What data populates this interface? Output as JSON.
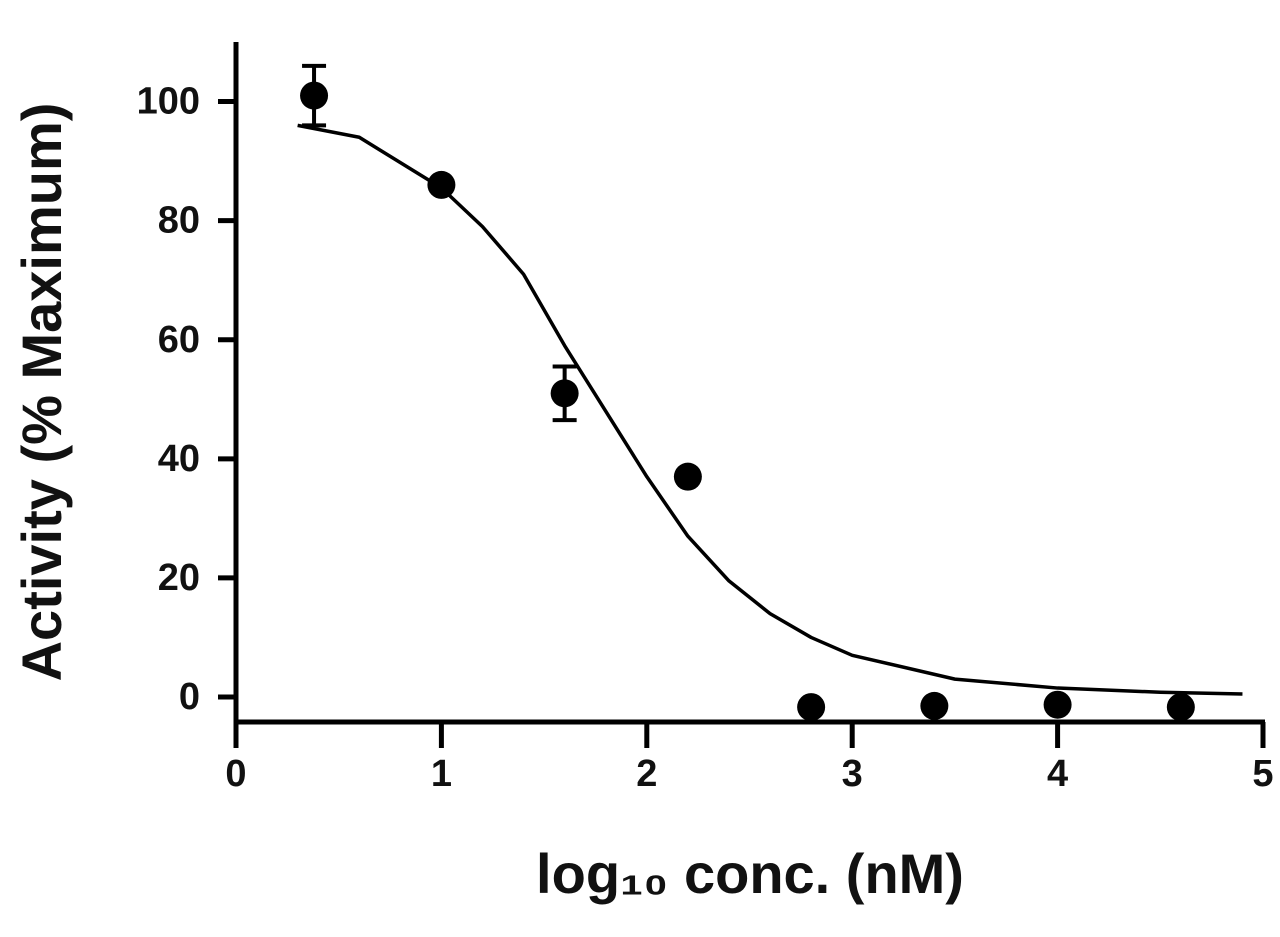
{
  "chart_data": {
    "type": "scatter",
    "xlabel": "log₁₀ conc. (nM)",
    "ylabel": "Activity (% Maximum)",
    "xlim": [
      0,
      5
    ],
    "ylim": [
      -4.2,
      110
    ],
    "xticks": [
      0,
      1,
      2,
      3,
      4,
      5
    ],
    "yticks": [
      0,
      20,
      40,
      60,
      80,
      100
    ],
    "color": "#000000",
    "series": [
      {
        "x": [
          0.38,
          1.0,
          1.6,
          2.2,
          2.8,
          3.4,
          4.0,
          4.6
        ],
        "values": [
          101,
          86,
          51,
          37,
          -1.7,
          -1.5,
          -1.3,
          -1.7
        ],
        "errors": [
          5,
          null,
          4.5,
          null,
          null,
          null,
          null,
          null
        ]
      }
    ],
    "fit": {
      "x": [
        0.3,
        0.6,
        1.0,
        1.2,
        1.4,
        1.6,
        1.8,
        2.0,
        2.2,
        2.4,
        2.6,
        2.8,
        3.0,
        3.5,
        4.0,
        4.5,
        4.9
      ],
      "values": [
        96,
        94,
        85.5,
        79,
        71,
        59,
        48,
        37,
        27,
        19.5,
        14,
        10,
        7,
        3,
        1.5,
        0.8,
        0.5
      ]
    }
  }
}
